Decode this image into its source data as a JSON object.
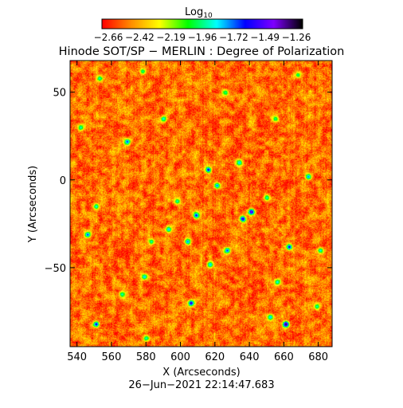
{
  "colorbar": {
    "label_main": "Log",
    "label_sub": "10",
    "ticks": [
      "−2.66",
      "−2.42",
      "−2.19",
      "−1.96",
      "−1.72",
      "−1.49",
      "−1.26"
    ],
    "range": [
      -2.66,
      -1.26
    ],
    "colormap": [
      "#ff0000",
      "#ff8c00",
      "#ffff00",
      "#00ff00",
      "#00ffff",
      "#0000ff",
      "#7f00ff",
      "#000000"
    ]
  },
  "chart_data": {
    "type": "heatmap",
    "title": "Hinode SOT/SP − MERLIN : Degree of Polarization",
    "xlabel": "X (Arcseconds)",
    "ylabel": "Y (Arcseconds)",
    "xlim": [
      536,
      688
    ],
    "ylim": [
      -95,
      68
    ],
    "xticks": [
      540,
      560,
      580,
      600,
      620,
      640,
      660,
      680
    ],
    "yticks": [
      -50,
      0,
      50
    ],
    "xtick_labels": [
      "540",
      "560",
      "580",
      "600",
      "620",
      "640",
      "660",
      "680"
    ],
    "ytick_labels": [
      "−50",
      "0",
      "50"
    ],
    "value_range": [
      -2.66,
      -1.26
    ],
    "background_level": -2.5,
    "features": [
      {
        "x": 553,
        "y": 58,
        "v": -1.9
      },
      {
        "x": 578,
        "y": 62,
        "v": -1.95
      },
      {
        "x": 569,
        "y": 22,
        "v": -1.7
      },
      {
        "x": 590,
        "y": 35,
        "v": -1.85
      },
      {
        "x": 616,
        "y": 6,
        "v": -1.6
      },
      {
        "x": 621,
        "y": -3,
        "v": -1.75
      },
      {
        "x": 634,
        "y": 10,
        "v": -1.8
      },
      {
        "x": 626,
        "y": 50,
        "v": -1.95
      },
      {
        "x": 551,
        "y": -15,
        "v": -1.85
      },
      {
        "x": 546,
        "y": -31,
        "v": -1.7
      },
      {
        "x": 583,
        "y": -35,
        "v": -1.9
      },
      {
        "x": 593,
        "y": -28,
        "v": -1.8
      },
      {
        "x": 604,
        "y": -35,
        "v": -1.75
      },
      {
        "x": 598,
        "y": -12,
        "v": -1.9
      },
      {
        "x": 609,
        "y": -20,
        "v": -1.65
      },
      {
        "x": 617,
        "y": -48,
        "v": -1.8
      },
      {
        "x": 627,
        "y": -40,
        "v": -1.7
      },
      {
        "x": 636,
        "y": -22,
        "v": -1.5
      },
      {
        "x": 641,
        "y": -18,
        "v": -1.45
      },
      {
        "x": 650,
        "y": -10,
        "v": -1.9
      },
      {
        "x": 663,
        "y": -38,
        "v": -1.6
      },
      {
        "x": 674,
        "y": 2,
        "v": -1.75
      },
      {
        "x": 681,
        "y": -40,
        "v": -1.85
      },
      {
        "x": 566,
        "y": -65,
        "v": -1.9
      },
      {
        "x": 579,
        "y": -55,
        "v": -1.8
      },
      {
        "x": 606,
        "y": -70,
        "v": -1.55
      },
      {
        "x": 656,
        "y": -58,
        "v": -1.85
      },
      {
        "x": 551,
        "y": -82,
        "v": -1.6
      },
      {
        "x": 580,
        "y": -90,
        "v": -1.9
      },
      {
        "x": 652,
        "y": -78,
        "v": -1.8
      },
      {
        "x": 661,
        "y": -82,
        "v": -1.3
      },
      {
        "x": 679,
        "y": -72,
        "v": -1.9
      },
      {
        "x": 668,
        "y": 60,
        "v": -1.95
      },
      {
        "x": 542,
        "y": 30,
        "v": -1.9
      },
      {
        "x": 655,
        "y": 35,
        "v": -1.95
      }
    ]
  },
  "timestamp": "26−Jun−2021 22:14:47.683"
}
